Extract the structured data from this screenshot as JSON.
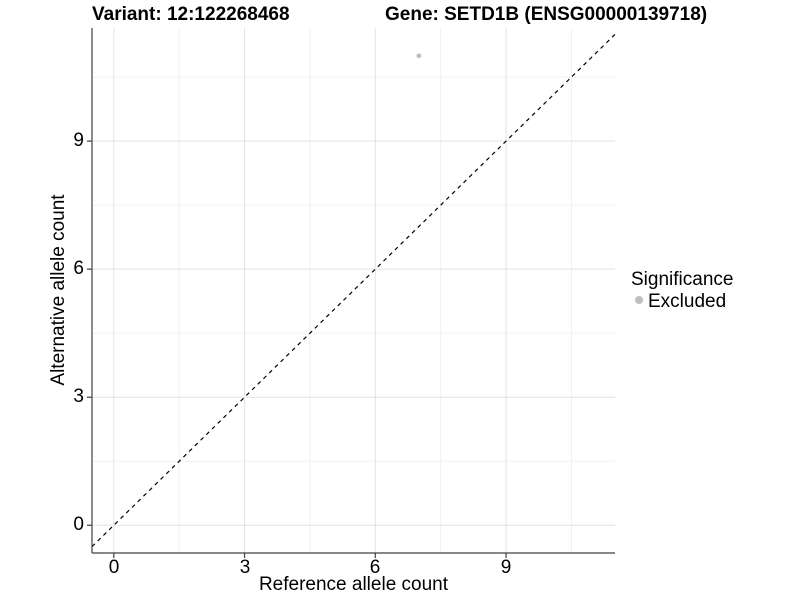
{
  "chart_data": {
    "type": "scatter",
    "title_left": "Variant: 12:122268468",
    "title_right": "Gene: SETD1B (ENSG00000139718)",
    "xlabel": "Reference allele count",
    "ylabel": "Alternative allele count",
    "x_ticks": [
      0,
      3,
      6,
      9
    ],
    "y_ticks": [
      0,
      3,
      6,
      9
    ],
    "xlim": [
      -0.5,
      11.5
    ],
    "ylim": [
      -0.65,
      11.65
    ],
    "grid": "major and minor gridlines, light gray on white panel",
    "points": [
      {
        "x": 7,
        "y": 11,
        "significance": "Excluded"
      }
    ],
    "reference_line": {
      "kind": "identity y=x",
      "style": "dashed",
      "color": "#000000"
    },
    "legend": {
      "title": "Significance",
      "position": "right-middle",
      "entries": [
        {
          "label": "Excluded",
          "color": "#bebebe",
          "marker": "circle"
        }
      ]
    },
    "colors": {
      "background": "#ffffff",
      "point": "#bebebe",
      "grid_major": "#e3e3e3",
      "grid_minor": "#f0f0f0",
      "axis": "#404040",
      "reference_line": "#000000",
      "text": "#000000"
    }
  }
}
